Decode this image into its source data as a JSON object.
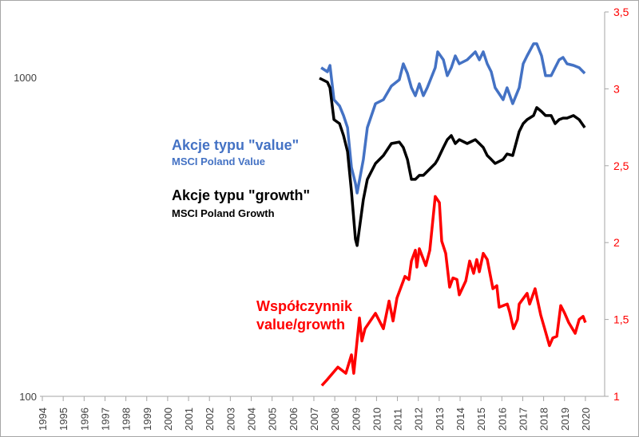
{
  "chart_data": {
    "type": "line",
    "title": "",
    "xlabel": "",
    "ylabel_left": "",
    "ylabel_right": "",
    "x_ticks": [
      "1994",
      "1995",
      "1996",
      "1997",
      "1998",
      "1999",
      "2000",
      "2001",
      "2002",
      "2003",
      "2004",
      "2005",
      "2006",
      "2007",
      "2008",
      "2009",
      "2010",
      "2011",
      "2012",
      "2013",
      "2014",
      "2015",
      "2016",
      "2017",
      "2018",
      "2019",
      "2020"
    ],
    "left_axis": {
      "scale": "log",
      "range": [
        100,
        1600
      ],
      "ticks": [
        "100",
        "1000"
      ],
      "tick_values": [
        100,
        1000
      ]
    },
    "right_axis": {
      "scale": "linear",
      "range": [
        1,
        3.5
      ],
      "ticks": [
        "1",
        "1,5",
        "2",
        "2,5",
        "3",
        "3,5"
      ],
      "tick_values": [
        1,
        1.5,
        2,
        2.5,
        3,
        3.5
      ],
      "color": "#FF0000"
    },
    "grid": false,
    "series": [
      {
        "name": "Akcje typu \"value\"",
        "subtitle": "MSCI Poland Value",
        "axis": "left",
        "color": "#4472C4",
        "x": [
          2007.35,
          2007.65,
          2007.77,
          2007.96,
          2008.23,
          2008.42,
          2008.61,
          2008.8,
          2008.99,
          2009.07,
          2009.37,
          2009.56,
          2009.95,
          2010.33,
          2010.71,
          2011.09,
          2011.28,
          2011.48,
          2011.67,
          2011.86,
          2012.05,
          2012.24,
          2012.43,
          2012.81,
          2012.93,
          2013.2,
          2013.39,
          2013.58,
          2013.77,
          2013.96,
          2014.34,
          2014.73,
          2014.92,
          2015.11,
          2015.3,
          2015.49,
          2015.68,
          2016.06,
          2016.25,
          2016.52,
          2016.83,
          2017.02,
          2017.21,
          2017.52,
          2017.67,
          2017.9,
          2018.09,
          2018.36,
          2018.55,
          2018.74,
          2018.93,
          2019.12,
          2019.43,
          2019.7,
          2019.97
        ],
        "values": [
          1072,
          1041,
          1090,
          851,
          814,
          759,
          696,
          522,
          465,
          434,
          553,
          696,
          827,
          851,
          939,
          983,
          1103,
          1029,
          928,
          876,
          955,
          876,
          928,
          1072,
          1202,
          1135,
          1012,
          1072,
          1168,
          1103,
          1135,
          1202,
          1135,
          1202,
          1103,
          1041,
          928,
          851,
          928,
          827,
          928,
          1103,
          1168,
          1274,
          1274,
          1168,
          1012,
          1012,
          1072,
          1135,
          1155,
          1103,
          1090,
          1072,
          1029
        ]
      },
      {
        "name": "Akcje typu \"growth\"",
        "subtitle": "MSCI Poland Growth",
        "axis": "left",
        "color": "#000000",
        "x": [
          2007.27,
          2007.65,
          2007.77,
          2007.96,
          2008.23,
          2008.42,
          2008.61,
          2008.8,
          2008.99,
          2009.07,
          2009.37,
          2009.56,
          2009.95,
          2010.33,
          2010.71,
          2011.09,
          2011.28,
          2011.48,
          2011.67,
          2011.86,
          2012.05,
          2012.24,
          2012.43,
          2012.81,
          2012.93,
          2013.2,
          2013.39,
          2013.58,
          2013.77,
          2013.96,
          2014.34,
          2014.73,
          2014.92,
          2015.11,
          2015.3,
          2015.49,
          2015.68,
          2016.06,
          2016.25,
          2016.52,
          2016.83,
          2017.02,
          2017.21,
          2017.52,
          2017.67,
          2017.9,
          2018.09,
          2018.36,
          2018.55,
          2018.74,
          2018.93,
          2019.12,
          2019.43,
          2019.7,
          2019.97
        ],
        "values": [
          994,
          966,
          928,
          737,
          716,
          657,
          585,
          439,
          311,
          297,
          414,
          479,
          537,
          569,
          620,
          627,
          603,
          553,
          479,
          479,
          493,
          493,
          507,
          537,
          553,
          603,
          638,
          657,
          620,
          638,
          620,
          638,
          620,
          603,
          569,
          553,
          537,
          553,
          575,
          569,
          676,
          716,
          737,
          759,
          804,
          781,
          759,
          759,
          716,
          737,
          745,
          745,
          759,
          737,
          696
        ]
      },
      {
        "name": "Współczynnik",
        "subtitle": "value/growth",
        "axis": "right",
        "color": "#FF0000",
        "x": [
          2007.38,
          2007.65,
          2008.15,
          2008.53,
          2008.8,
          2008.91,
          2009.18,
          2009.3,
          2009.45,
          2009.95,
          2010.33,
          2010.6,
          2010.79,
          2010.98,
          2011.36,
          2011.55,
          2011.67,
          2011.86,
          2011.93,
          2012.05,
          2012.36,
          2012.55,
          2012.81,
          2013.01,
          2013.12,
          2013.31,
          2013.5,
          2013.66,
          2013.85,
          2013.96,
          2014.27,
          2014.46,
          2014.65,
          2014.8,
          2014.92,
          2015.11,
          2015.3,
          2015.57,
          2015.76,
          2015.87,
          2016.26,
          2016.37,
          2016.56,
          2016.75,
          2016.83,
          2017.21,
          2017.33,
          2017.59,
          2017.86,
          2018.05,
          2018.28,
          2018.44,
          2018.63,
          2018.82,
          2019.01,
          2019.2,
          2019.51,
          2019.7,
          2019.89,
          2020.0
        ],
        "values": [
          1.07,
          1.11,
          1.19,
          1.15,
          1.27,
          1.15,
          1.51,
          1.36,
          1.44,
          1.54,
          1.44,
          1.62,
          1.49,
          1.64,
          1.78,
          1.76,
          1.88,
          1.95,
          1.84,
          1.96,
          1.85,
          1.95,
          2.3,
          2.26,
          2.01,
          1.93,
          1.71,
          1.77,
          1.76,
          1.66,
          1.75,
          1.88,
          1.8,
          1.89,
          1.81,
          1.93,
          1.89,
          1.7,
          1.72,
          1.58,
          1.6,
          1.55,
          1.44,
          1.5,
          1.6,
          1.67,
          1.6,
          1.7,
          1.53,
          1.44,
          1.33,
          1.38,
          1.39,
          1.59,
          1.54,
          1.48,
          1.41,
          1.5,
          1.52,
          1.48
        ]
      }
    ]
  }
}
